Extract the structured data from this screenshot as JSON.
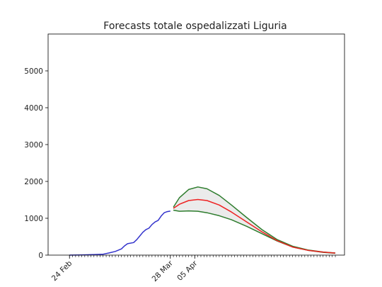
{
  "chart_data": {
    "type": "line",
    "title": "Forecasts totale ospedalizzati Liguria",
    "xlabel": "",
    "ylabel": "",
    "x_axis": {
      "type": "date",
      "range": [
        "2020-02-17",
        "2020-05-24"
      ],
      "labeled_ticks": [
        {
          "date": "2020-02-24",
          "label": "24 Feb"
        },
        {
          "date": "2020-03-28",
          "label": "28 Mar"
        },
        {
          "date": "2020-04-05",
          "label": "05 Apr"
        }
      ],
      "minor_tick_step_days": 1
    },
    "y_axis": {
      "range": [
        0,
        6000
      ],
      "ticks": [
        0,
        1000,
        2000,
        3000,
        4000,
        5000
      ]
    },
    "grid": false,
    "series": [
      {
        "role": "observed",
        "color": "#3333cc",
        "points": [
          [
            "2020-02-24",
            0
          ],
          [
            "2020-02-28",
            5
          ],
          [
            "2020-03-03",
            15
          ],
          [
            "2020-03-06",
            25
          ],
          [
            "2020-03-08",
            60
          ],
          [
            "2020-03-10",
            100
          ],
          [
            "2020-03-12",
            170
          ],
          [
            "2020-03-13",
            250
          ],
          [
            "2020-03-14",
            310
          ],
          [
            "2020-03-16",
            340
          ],
          [
            "2020-03-17",
            420
          ],
          [
            "2020-03-18",
            520
          ],
          [
            "2020-03-19",
            620
          ],
          [
            "2020-03-20",
            690
          ],
          [
            "2020-03-21",
            730
          ],
          [
            "2020-03-22",
            830
          ],
          [
            "2020-03-23",
            900
          ],
          [
            "2020-03-24",
            940
          ],
          [
            "2020-03-25",
            1060
          ],
          [
            "2020-03-26",
            1150
          ],
          [
            "2020-03-27",
            1180
          ],
          [
            "2020-03-28",
            1195
          ]
        ]
      },
      {
        "role": "forecast",
        "color": "#ee2222",
        "points": [
          [
            "2020-03-29",
            1270
          ],
          [
            "2020-03-31",
            1380
          ],
          [
            "2020-04-03",
            1480
          ],
          [
            "2020-04-06",
            1510
          ],
          [
            "2020-04-09",
            1480
          ],
          [
            "2020-04-13",
            1360
          ],
          [
            "2020-04-17",
            1170
          ],
          [
            "2020-04-22",
            900
          ],
          [
            "2020-04-27",
            630
          ],
          [
            "2020-05-02",
            390
          ],
          [
            "2020-05-07",
            220
          ],
          [
            "2020-05-12",
            130
          ],
          [
            "2020-05-17",
            80
          ],
          [
            "2020-05-21",
            55
          ]
        ]
      },
      {
        "role": "upper_bound",
        "color": "#2e7d2e",
        "points": [
          [
            "2020-03-29",
            1300
          ],
          [
            "2020-03-31",
            1560
          ],
          [
            "2020-04-03",
            1780
          ],
          [
            "2020-04-06",
            1850
          ],
          [
            "2020-04-09",
            1800
          ],
          [
            "2020-04-13",
            1620
          ],
          [
            "2020-04-17",
            1360
          ],
          [
            "2020-04-22",
            1020
          ],
          [
            "2020-04-27",
            690
          ],
          [
            "2020-05-02",
            420
          ],
          [
            "2020-05-07",
            240
          ],
          [
            "2020-05-12",
            140
          ],
          [
            "2020-05-17",
            85
          ],
          [
            "2020-05-21",
            58
          ]
        ]
      },
      {
        "role": "lower_bound",
        "color": "#2e7d2e",
        "points": [
          [
            "2020-03-29",
            1220
          ],
          [
            "2020-03-31",
            1190
          ],
          [
            "2020-04-03",
            1200
          ],
          [
            "2020-04-06",
            1190
          ],
          [
            "2020-04-09",
            1150
          ],
          [
            "2020-04-13",
            1070
          ],
          [
            "2020-04-17",
            960
          ],
          [
            "2020-04-22",
            780
          ],
          [
            "2020-04-27",
            580
          ],
          [
            "2020-05-02",
            380
          ],
          [
            "2020-05-07",
            220
          ],
          [
            "2020-05-12",
            130
          ],
          [
            "2020-05-17",
            75
          ],
          [
            "2020-05-21",
            50
          ]
        ]
      }
    ],
    "band_fill_color": "#ebebeb"
  }
}
